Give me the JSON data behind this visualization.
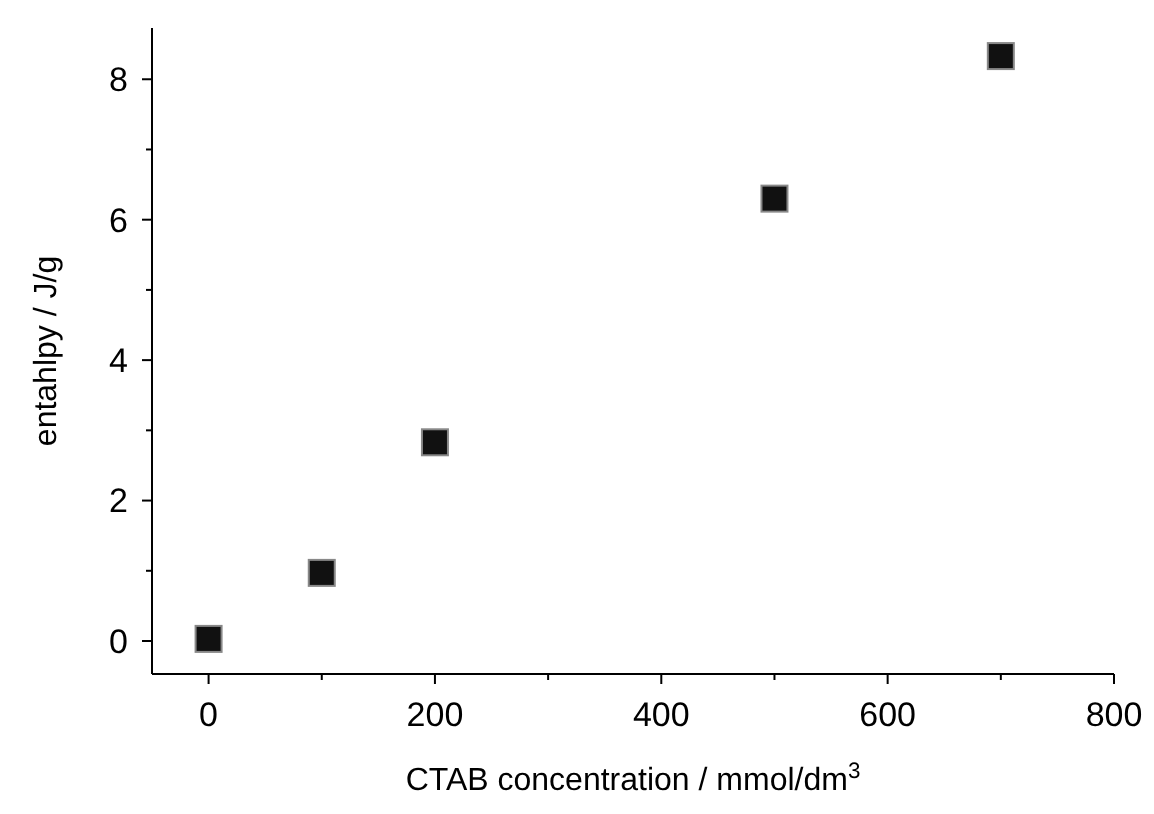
{
  "chart_data": {
    "type": "scatter",
    "xlabel": "CTAB concentration / mmol/dm$^{3}$",
    "ylabel": "entahlpy / J/g",
    "x": [
      0,
      100,
      200,
      500,
      700
    ],
    "series": [
      {
        "color": "#111111",
        "values": [
          0.03,
          0.97,
          2.83,
          6.3,
          8.33
        ]
      }
    ],
    "marker": "square",
    "grid": false,
    "xlim": [
      -50,
      800
    ],
    "ylim": [
      -0.47,
      8.73
    ],
    "xticks": [
      0,
      {
        "value": 100,
        "label": null
      },
      200,
      {
        "value": 300,
        "label": null
      },
      400,
      {
        "value": 500,
        "label": null
      },
      600,
      {
        "value": 700,
        "label": null
      },
      800
    ],
    "yticks": [
      0,
      {
        "value": 1,
        "label": null
      },
      2,
      {
        "value": 3,
        "label": null
      },
      4,
      {
        "value": 5,
        "label": null
      },
      6,
      {
        "value": 7,
        "label": null
      },
      8
    ]
  }
}
